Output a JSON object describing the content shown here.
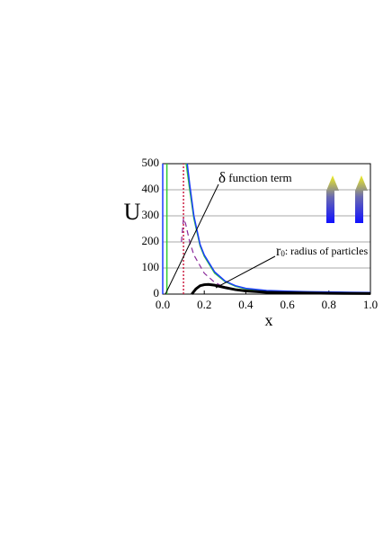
{
  "chart_data": {
    "type": "line",
    "y_label": "U",
    "x_label": "x",
    "xlim": [
      0,
      1
    ],
    "ylim": [
      0,
      500
    ],
    "xticks": [
      {
        "value": 0,
        "label": "0.0"
      },
      {
        "value": 0.2,
        "label": "0.2"
      },
      {
        "value": 0.4,
        "label": "0.4"
      },
      {
        "value": 0.6,
        "label": "0.6"
      },
      {
        "value": 0.8,
        "label": "0.8"
      },
      {
        "value": 1,
        "label": "1.0"
      }
    ],
    "yticks": [
      0,
      100,
      200,
      300,
      400,
      500
    ],
    "grid": true,
    "series": [
      {
        "color": "#1a3cff",
        "style": "solid",
        "width": 1.5,
        "x": [
          0,
          0
        ],
        "values": [
          0,
          500
        ]
      },
      {
        "color": "#33cc33",
        "style": "solid",
        "width": 1.5,
        "x": [
          0.02,
          0.02
        ],
        "values": [
          0,
          500
        ]
      },
      {
        "color": "#cc2244",
        "style": "dotted",
        "width": 1.5,
        "x": [
          0.1,
          0.1
        ],
        "values": [
          0,
          500
        ]
      },
      {
        "color": "#33cc33",
        "style": "solid",
        "width": 1.5,
        "x": [
          0.113,
          0.13,
          0.15,
          0.18,
          0.2,
          0.25,
          0.3,
          0.35,
          0.4,
          0.5,
          0.6,
          0.7,
          0.8,
          0.9,
          1.0
        ],
        "values": [
          500,
          400,
          290,
          185,
          145,
          80,
          48,
          30,
          20,
          13,
          10,
          8,
          7,
          6,
          5
        ]
      },
      {
        "color": "#1a3cff",
        "style": "solid",
        "width": 1.5,
        "x": [
          0.118,
          0.13,
          0.15,
          0.18,
          0.2,
          0.25,
          0.3,
          0.35,
          0.4,
          0.5,
          0.6,
          0.7,
          0.8,
          0.9,
          1.0
        ],
        "values": [
          500,
          420,
          300,
          190,
          150,
          85,
          50,
          32,
          22,
          14,
          11,
          9,
          8,
          7,
          6
        ]
      },
      {
        "color": "#8a2a9a",
        "style": "dashed",
        "width": 1.2,
        "x": [
          0.09,
          0.1,
          0.11,
          0.13,
          0.15,
          0.2,
          0.25,
          0.3,
          0.35,
          0.4,
          0.5
        ],
        "values": [
          200,
          290,
          270,
          200,
          150,
          80,
          45,
          25,
          15,
          10,
          5
        ]
      },
      {
        "color": "#000000",
        "style": "solid",
        "width": 3,
        "x": [
          0.14,
          0.16,
          0.18,
          0.2,
          0.22,
          0.25,
          0.3,
          0.35,
          0.4,
          0.5,
          0.6,
          0.8,
          1.0
        ],
        "values": [
          0,
          20,
          32,
          36,
          37,
          34,
          25,
          17,
          12,
          7,
          5,
          3,
          2
        ]
      }
    ],
    "annotations": [
      {
        "symbol": "δ",
        "text": " function term"
      },
      {
        "symbol": "r",
        "sub": "0",
        "text": ": radius of particles"
      }
    ]
  }
}
